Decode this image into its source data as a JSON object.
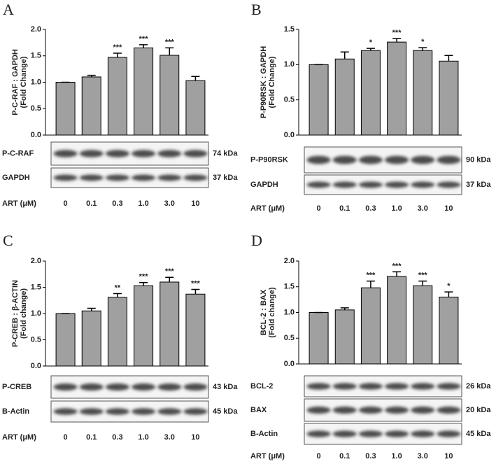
{
  "chart_data": [
    {
      "type": "bar",
      "panel": "A",
      "ylabel": [
        "P-C-RAF : GAPDH",
        "(Fold  Change)"
      ],
      "xlabel": "ART (μM)",
      "categories": [
        "0",
        "0.1",
        "0.3",
        "1.0",
        "3.0",
        "10"
      ],
      "values": [
        1.0,
        1.1,
        1.47,
        1.65,
        1.51,
        1.03
      ],
      "errors": [
        0,
        0.03,
        0.08,
        0.06,
        0.14,
        0.08
      ],
      "annotations": [
        null,
        null,
        "***",
        "***",
        "***",
        null
      ],
      "color": "#a0a0a0",
      "ylim": [
        0,
        2
      ],
      "yticks": [
        {
          "value": 0,
          "label": "0.0"
        },
        {
          "value": 0.5,
          "label": "0.5"
        },
        {
          "value": 1,
          "label": "1.0"
        },
        {
          "value": 1.5,
          "label": "1.5"
        },
        {
          "value": 2,
          "label": "2.0"
        }
      ],
      "blots": [
        {
          "label": "P-C-RAF",
          "size": "74 kDa"
        },
        {
          "label": "GAPDH",
          "size": "37 kDa"
        }
      ]
    },
    {
      "type": "bar",
      "panel": "B",
      "ylabel": [
        "P-P90RSK : GAPDH",
        "(Fold Change)"
      ],
      "xlabel": "ART (μM)",
      "categories": [
        "0",
        "0.1",
        "0.3",
        "1.0",
        "3.0",
        "10"
      ],
      "values": [
        1.0,
        1.08,
        1.2,
        1.32,
        1.2,
        1.05
      ],
      "errors": [
        0,
        0.1,
        0.03,
        0.05,
        0.04,
        0.08
      ],
      "annotations": [
        null,
        null,
        "*",
        "***",
        "*",
        null
      ],
      "color": "#a0a0a0",
      "ylim": [
        0,
        1.5
      ],
      "yticks": [
        {
          "value": 0,
          "label": "0.0"
        },
        {
          "value": 0.5,
          "label": "0.5"
        },
        {
          "value": 1,
          "label": "1.0"
        },
        {
          "value": 1.5,
          "label": "1.5"
        }
      ],
      "blots": [
        {
          "label": "P-P90RSK",
          "size": "90 kDa"
        },
        {
          "label": "GAPDH",
          "size": "37 kDa"
        }
      ]
    },
    {
      "type": "bar",
      "panel": "C",
      "ylabel": [
        "P-CREB : β-ACTIN",
        "(Fold change)"
      ],
      "xlabel": "ART (μM)",
      "categories": [
        "0",
        "0.1",
        "0.3",
        "1.0",
        "3.0",
        "10"
      ],
      "values": [
        1.0,
        1.05,
        1.31,
        1.53,
        1.6,
        1.37
      ],
      "errors": [
        0,
        0.05,
        0.07,
        0.06,
        0.09,
        0.09
      ],
      "annotations": [
        null,
        null,
        "**",
        "***",
        "***",
        "***"
      ],
      "color": "#a0a0a0",
      "ylim": [
        0,
        2
      ],
      "yticks": [
        {
          "value": 0,
          "label": "0.0"
        },
        {
          "value": 0.5,
          "label": "0.5"
        },
        {
          "value": 1,
          "label": "1.0"
        },
        {
          "value": 1.5,
          "label": "1.5"
        },
        {
          "value": 2,
          "label": "2.0"
        }
      ],
      "blots": [
        {
          "label": "P-CREB",
          "size": "43 kDa"
        },
        {
          "label": "B-Actin",
          "size": "45 kDa"
        }
      ]
    },
    {
      "type": "bar",
      "panel": "D",
      "ylabel": [
        "BCL-2 : BAX",
        "(Fold change)"
      ],
      "xlabel": "ART (μM)",
      "categories": [
        "0",
        "0.1",
        "0.3",
        "1.0",
        "3.0",
        "10"
      ],
      "values": [
        1.0,
        1.05,
        1.48,
        1.7,
        1.52,
        1.3
      ],
      "errors": [
        0,
        0.04,
        0.13,
        0.09,
        0.09,
        0.1
      ],
      "annotations": [
        null,
        null,
        "***",
        "***",
        "***",
        "*"
      ],
      "color": "#a0a0a0",
      "ylim": [
        0,
        2
      ],
      "yticks": [
        {
          "value": 0,
          "label": "0.0"
        },
        {
          "value": 0.5,
          "label": "0.5"
        },
        {
          "value": 1,
          "label": "1.0"
        },
        {
          "value": 1.5,
          "label": "1.5"
        },
        {
          "value": 2,
          "label": "2.0"
        }
      ],
      "blots": [
        {
          "label": "BCL-2",
          "size": "26 kDa"
        },
        {
          "label": "BAX",
          "size": "20 kDa"
        },
        {
          "label": "B-Actin",
          "size": "45 kDa"
        }
      ]
    }
  ]
}
